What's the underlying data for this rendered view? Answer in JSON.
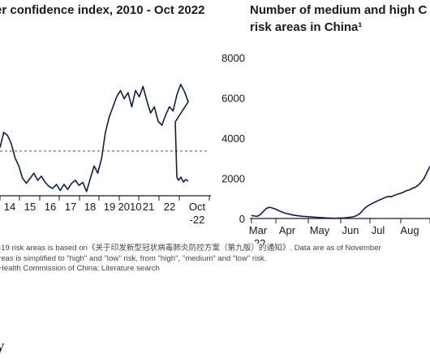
{
  "chart_data": [
    {
      "type": "line",
      "title": "er confidence index, 2010 - Oct 2022",
      "tick_labels": [
        "14",
        "15",
        "16",
        "17",
        "18",
        "19",
        "2010",
        "21",
        "22",
        "Oct\n-22"
      ],
      "reference_line": "dashed",
      "series_shape": [
        [
          0,
          40
        ],
        [
          2,
          55
        ],
        [
          4,
          52
        ],
        [
          6,
          44
        ],
        [
          8,
          30
        ],
        [
          10,
          22
        ],
        [
          12,
          10
        ],
        [
          14,
          5
        ],
        [
          16,
          10
        ],
        [
          18,
          15
        ],
        [
          20,
          8
        ],
        [
          22,
          12
        ],
        [
          24,
          6
        ],
        [
          26,
          2
        ],
        [
          28,
          0
        ],
        [
          30,
          4
        ],
        [
          32,
          -2
        ],
        [
          34,
          4
        ],
        [
          36,
          -1
        ],
        [
          38,
          5
        ],
        [
          40,
          8
        ],
        [
          42,
          3
        ],
        [
          44,
          6
        ],
        [
          46,
          -3
        ],
        [
          48,
          10
        ],
        [
          50,
          22
        ],
        [
          52,
          15
        ],
        [
          54,
          30
        ],
        [
          56,
          55
        ],
        [
          58,
          70
        ],
        [
          60,
          80
        ],
        [
          62,
          90
        ],
        [
          64,
          96
        ],
        [
          66,
          88
        ],
        [
          68,
          94
        ],
        [
          70,
          80
        ],
        [
          72,
          96
        ],
        [
          74,
          90
        ],
        [
          76,
          100
        ],
        [
          78,
          86
        ],
        [
          80,
          74
        ],
        [
          82,
          80
        ],
        [
          84,
          66
        ],
        [
          86,
          62
        ],
        [
          88,
          72
        ],
        [
          90,
          80
        ],
        [
          92,
          76
        ],
        [
          94,
          92
        ],
        [
          96,
          102
        ],
        [
          98,
          95
        ],
        [
          100,
          85
        ]
      ]
    },
    {
      "type": "line",
      "title": "Number of medium and high C",
      "title_line2": "risk areas in China¹",
      "y_ticks": [
        0,
        2000,
        4000,
        6000,
        8000
      ],
      "ylim": [
        0,
        8000
      ],
      "x_labels": [
        "Mar\n-22",
        "Apr",
        "May",
        "Jun",
        "Jul",
        "Aug"
      ],
      "series": [
        {
          "x": [
            0,
            5,
            10,
            15,
            20,
            25,
            30,
            35,
            40,
            45,
            50,
            55,
            60,
            65,
            70,
            75,
            80,
            85,
            90,
            95,
            100,
            105,
            110,
            115,
            120,
            125,
            130,
            135,
            140,
            145,
            150,
            155,
            160,
            165,
            170,
            175,
            180,
            185,
            190,
            195,
            200,
            205,
            210,
            215,
            220,
            225,
            230,
            235,
            240,
            245,
            250,
            255,
            260,
            265,
            270,
            275,
            280,
            285,
            290,
            295,
            300
          ],
          "y": [
            150,
            120,
            110,
            200,
            350,
            500,
            560,
            520,
            470,
            400,
            340,
            280,
            240,
            210,
            170,
            150,
            130,
            110,
            100,
            90,
            80,
            70,
            60,
            50,
            40,
            30,
            20,
            15,
            10,
            20,
            25,
            30,
            40,
            60,
            80,
            120,
            200,
            330,
            500,
            620,
            700,
            780,
            850,
            920,
            980,
            1050,
            1100,
            1080,
            1150,
            1200,
            1250,
            1300,
            1380,
            1420,
            1500,
            1550,
            1650,
            1800,
            2000,
            2300,
            2600
          ]
        }
      ]
    }
  ],
  "left_axis": {
    "ticks": [
      "14",
      "15",
      "16",
      "17",
      "18",
      "19",
      "2010",
      "21",
      "22",
      "Oct",
      "-22"
    ]
  },
  "notes": {
    "line1": "-19 risk areas is based on《关于印发新型冠状病毒肺炎防控方案（第九版）的通知》. Data are as of November",
    "line2": "reas is simplified to \"high\" and \"low\" risk, from \"high\", \"medium\" and \"low\" risk.",
    "line3": "Health Commission of China; Literature search"
  },
  "brand": "y"
}
